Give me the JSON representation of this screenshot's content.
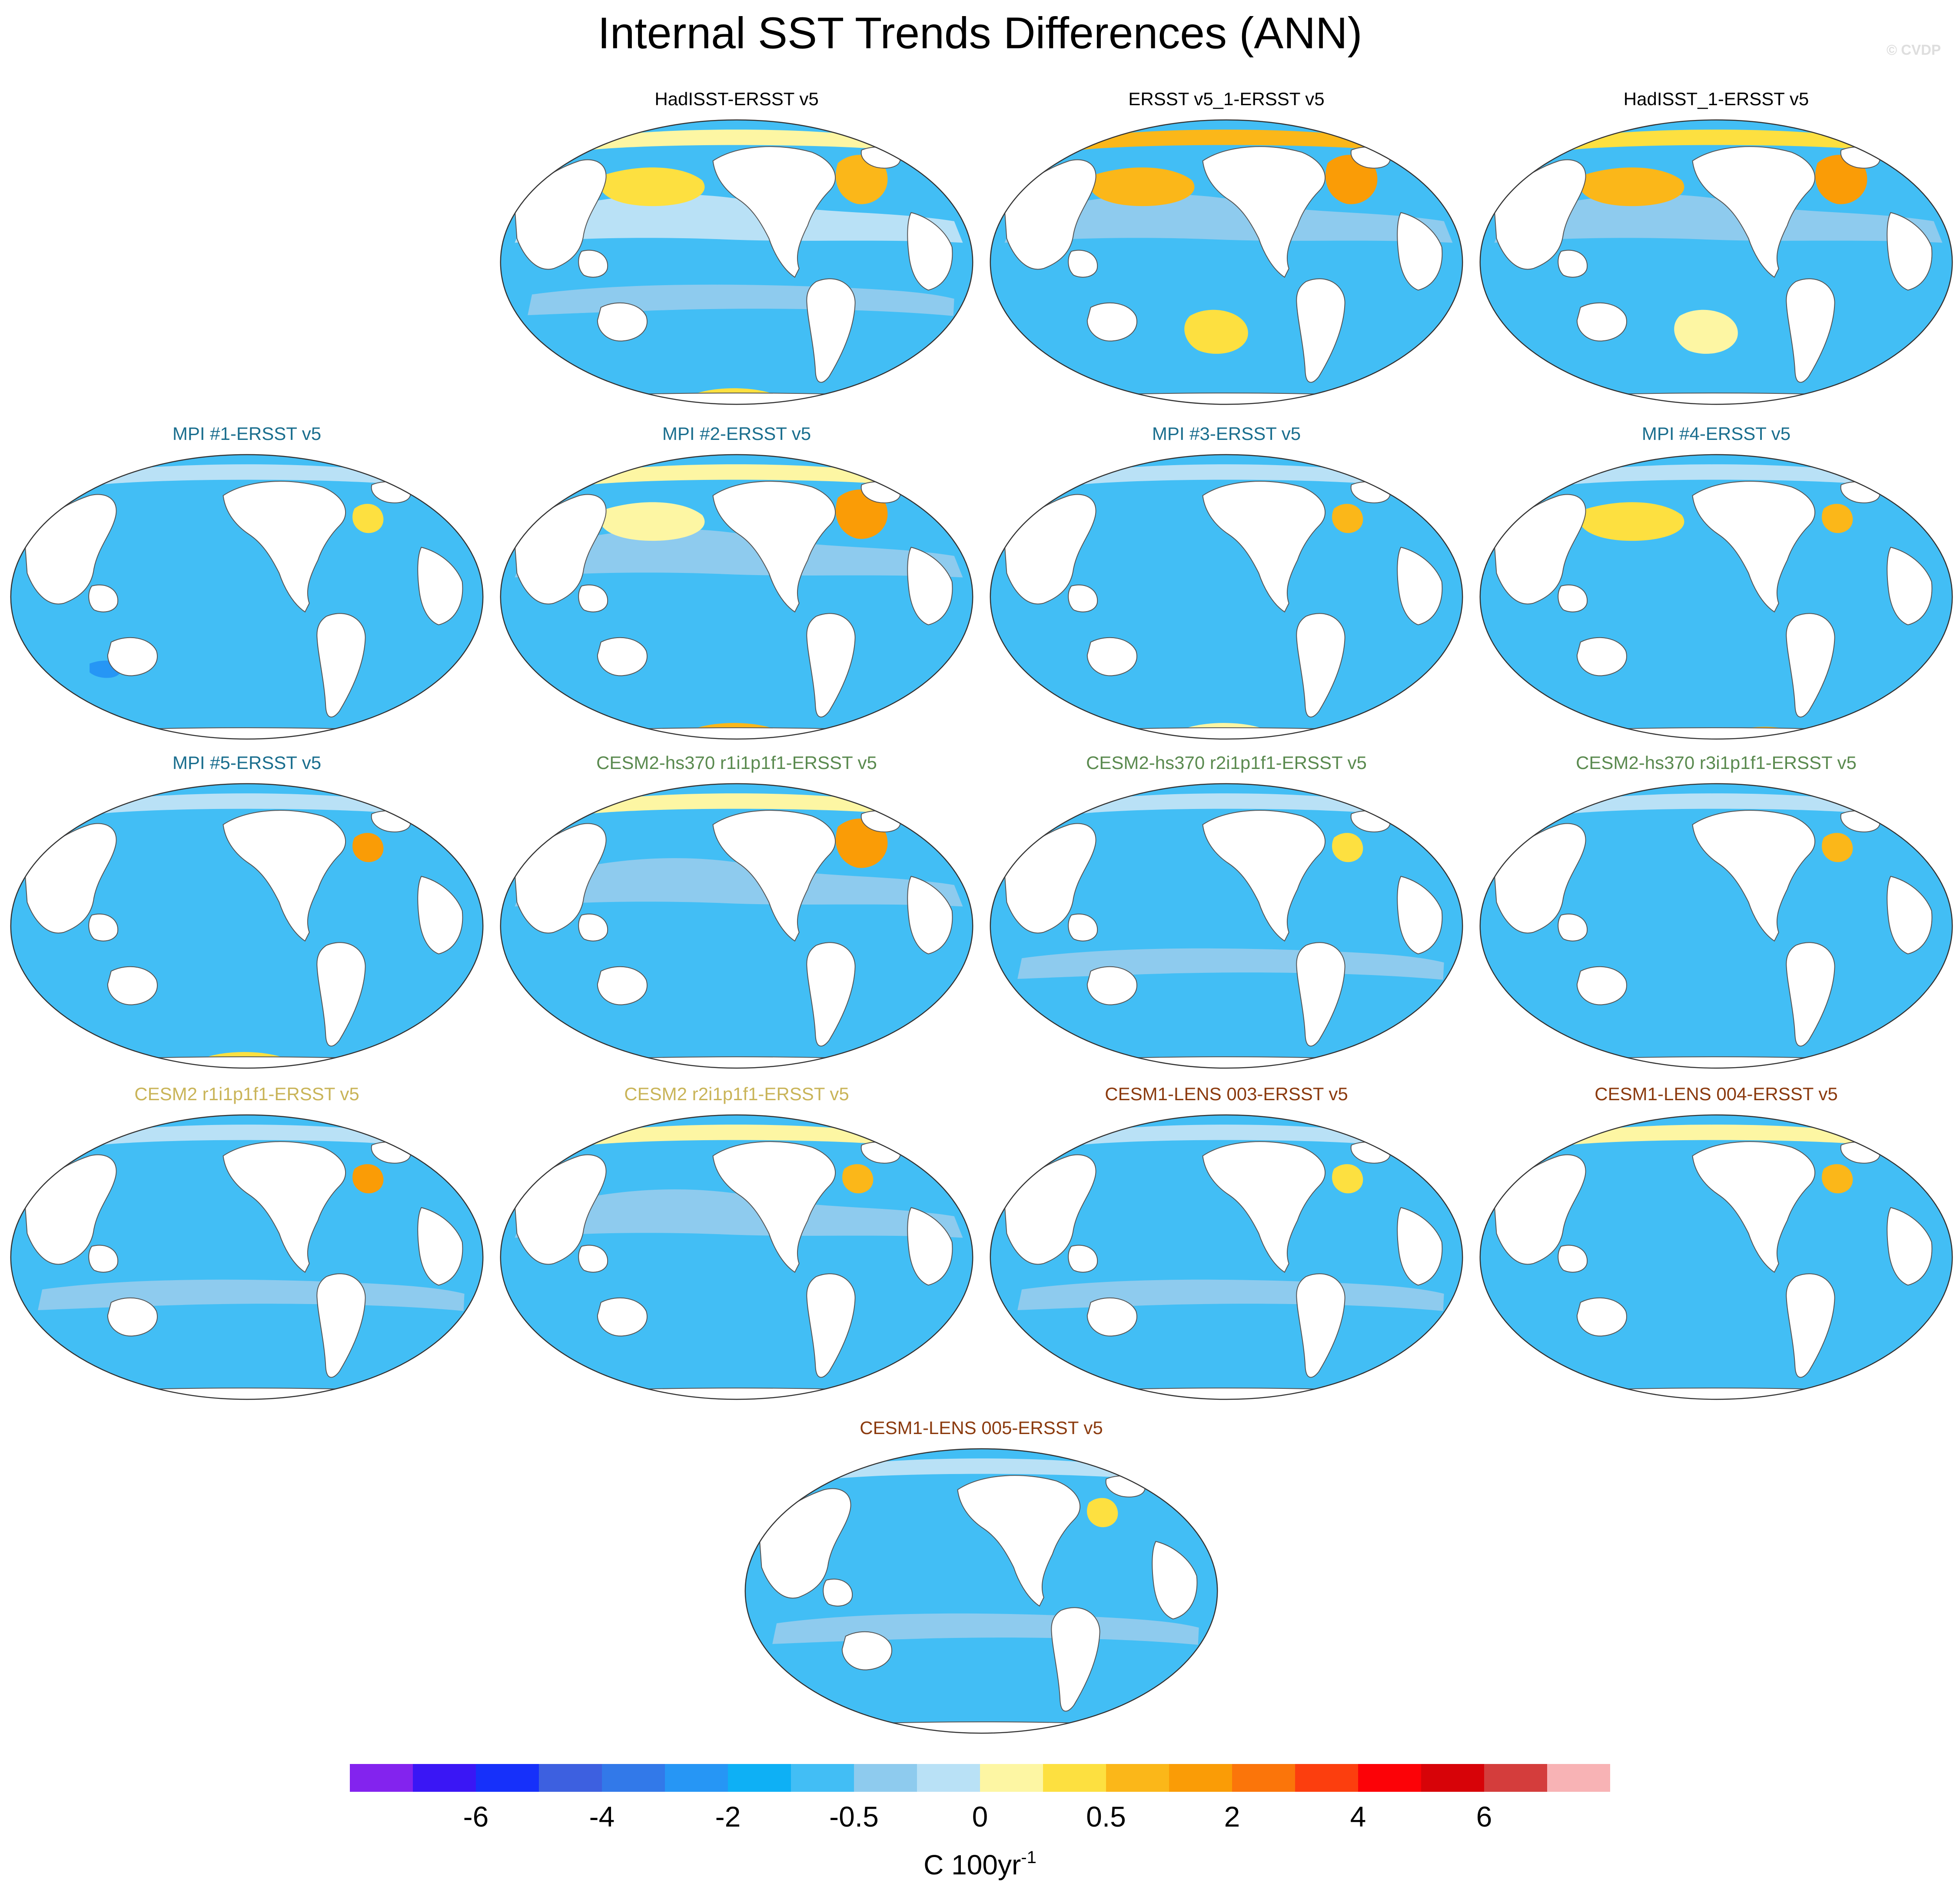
{
  "title": "Internal SST Trends Differences (ANN)",
  "watermark": "© CVDP",
  "map_data": {
    "projection": "Robinson (Pacific-centered)",
    "variable": "SST trend difference",
    "season": "ANN",
    "panels": [
      {
        "title": "HadISST-ERSST v5",
        "title_color": "#000000",
        "pattern": "obs_had"
      },
      {
        "title": "ERSST v5_1-ERSST v5",
        "title_color": "#000000",
        "pattern": "obs_ersst"
      },
      {
        "title": "HadISST_1-ERSST v5",
        "title_color": "#000000",
        "pattern": "obs_had1"
      },
      {
        "title": "MPI #1-ERSST v5",
        "title_color": "#1a6e8e",
        "pattern": "mpi1"
      },
      {
        "title": "MPI #2-ERSST v5",
        "title_color": "#1a6e8e",
        "pattern": "mpi2"
      },
      {
        "title": "MPI #3-ERSST v5",
        "title_color": "#1a6e8e",
        "pattern": "mpi3"
      },
      {
        "title": "MPI #4-ERSST v5",
        "title_color": "#1a6e8e",
        "pattern": "mpi4"
      },
      {
        "title": "MPI #5-ERSST v5",
        "title_color": "#1a6e8e",
        "pattern": "mpi5"
      },
      {
        "title": "CESM2-hs370 r1i1p1f1-ERSST v5",
        "title_color": "#5a8a4f",
        "pattern": "hs1"
      },
      {
        "title": "CESM2-hs370 r2i1p1f1-ERSST v5",
        "title_color": "#5a8a4f",
        "pattern": "hs2"
      },
      {
        "title": "CESM2-hs370 r3i1p1f1-ERSST v5",
        "title_color": "#5a8a4f",
        "pattern": "hs3"
      },
      {
        "title": "CESM2 r1i1p1f1-ERSST v5",
        "title_color": "#c9b458",
        "pattern": "c1"
      },
      {
        "title": "CESM2 r2i1p1f1-ERSST v5",
        "title_color": "#c9b458",
        "pattern": "c2"
      },
      {
        "title": "CESM1-LENS 003-ERSST v5",
        "title_color": "#8b3a0e",
        "pattern": "l3"
      },
      {
        "title": "CESM1-LENS 004-ERSST v5",
        "title_color": "#8b3a0e",
        "pattern": "l4"
      },
      {
        "title": "CESM1-LENS 005-ERSST v5",
        "title_color": "#8b3a0e",
        "pattern": "l5"
      }
    ]
  },
  "colorbar": {
    "unit_text": "C 100yr",
    "unit_exponent": "-1",
    "colors": [
      "#8323ee",
      "#3a16f5",
      "#1630fa",
      "#3d60e0",
      "#3279e9",
      "#2696f5",
      "#0eb0f5",
      "#42bef5",
      "#8ecbee",
      "#b9e1f6",
      "#fdf6a3",
      "#fde040",
      "#fbb719",
      "#fa9c06",
      "#fb750a",
      "#fc3e0e",
      "#fc0207",
      "#d70308",
      "#d43d3c",
      "#f8b3b5"
    ],
    "tick_labels": [
      "-6",
      "-4",
      "-2",
      "-0.5",
      "0",
      "0.5",
      "2",
      "4",
      "6"
    ],
    "tick_boundaries": [
      2,
      4,
      6,
      8,
      10,
      12,
      14,
      16,
      18
    ]
  }
}
